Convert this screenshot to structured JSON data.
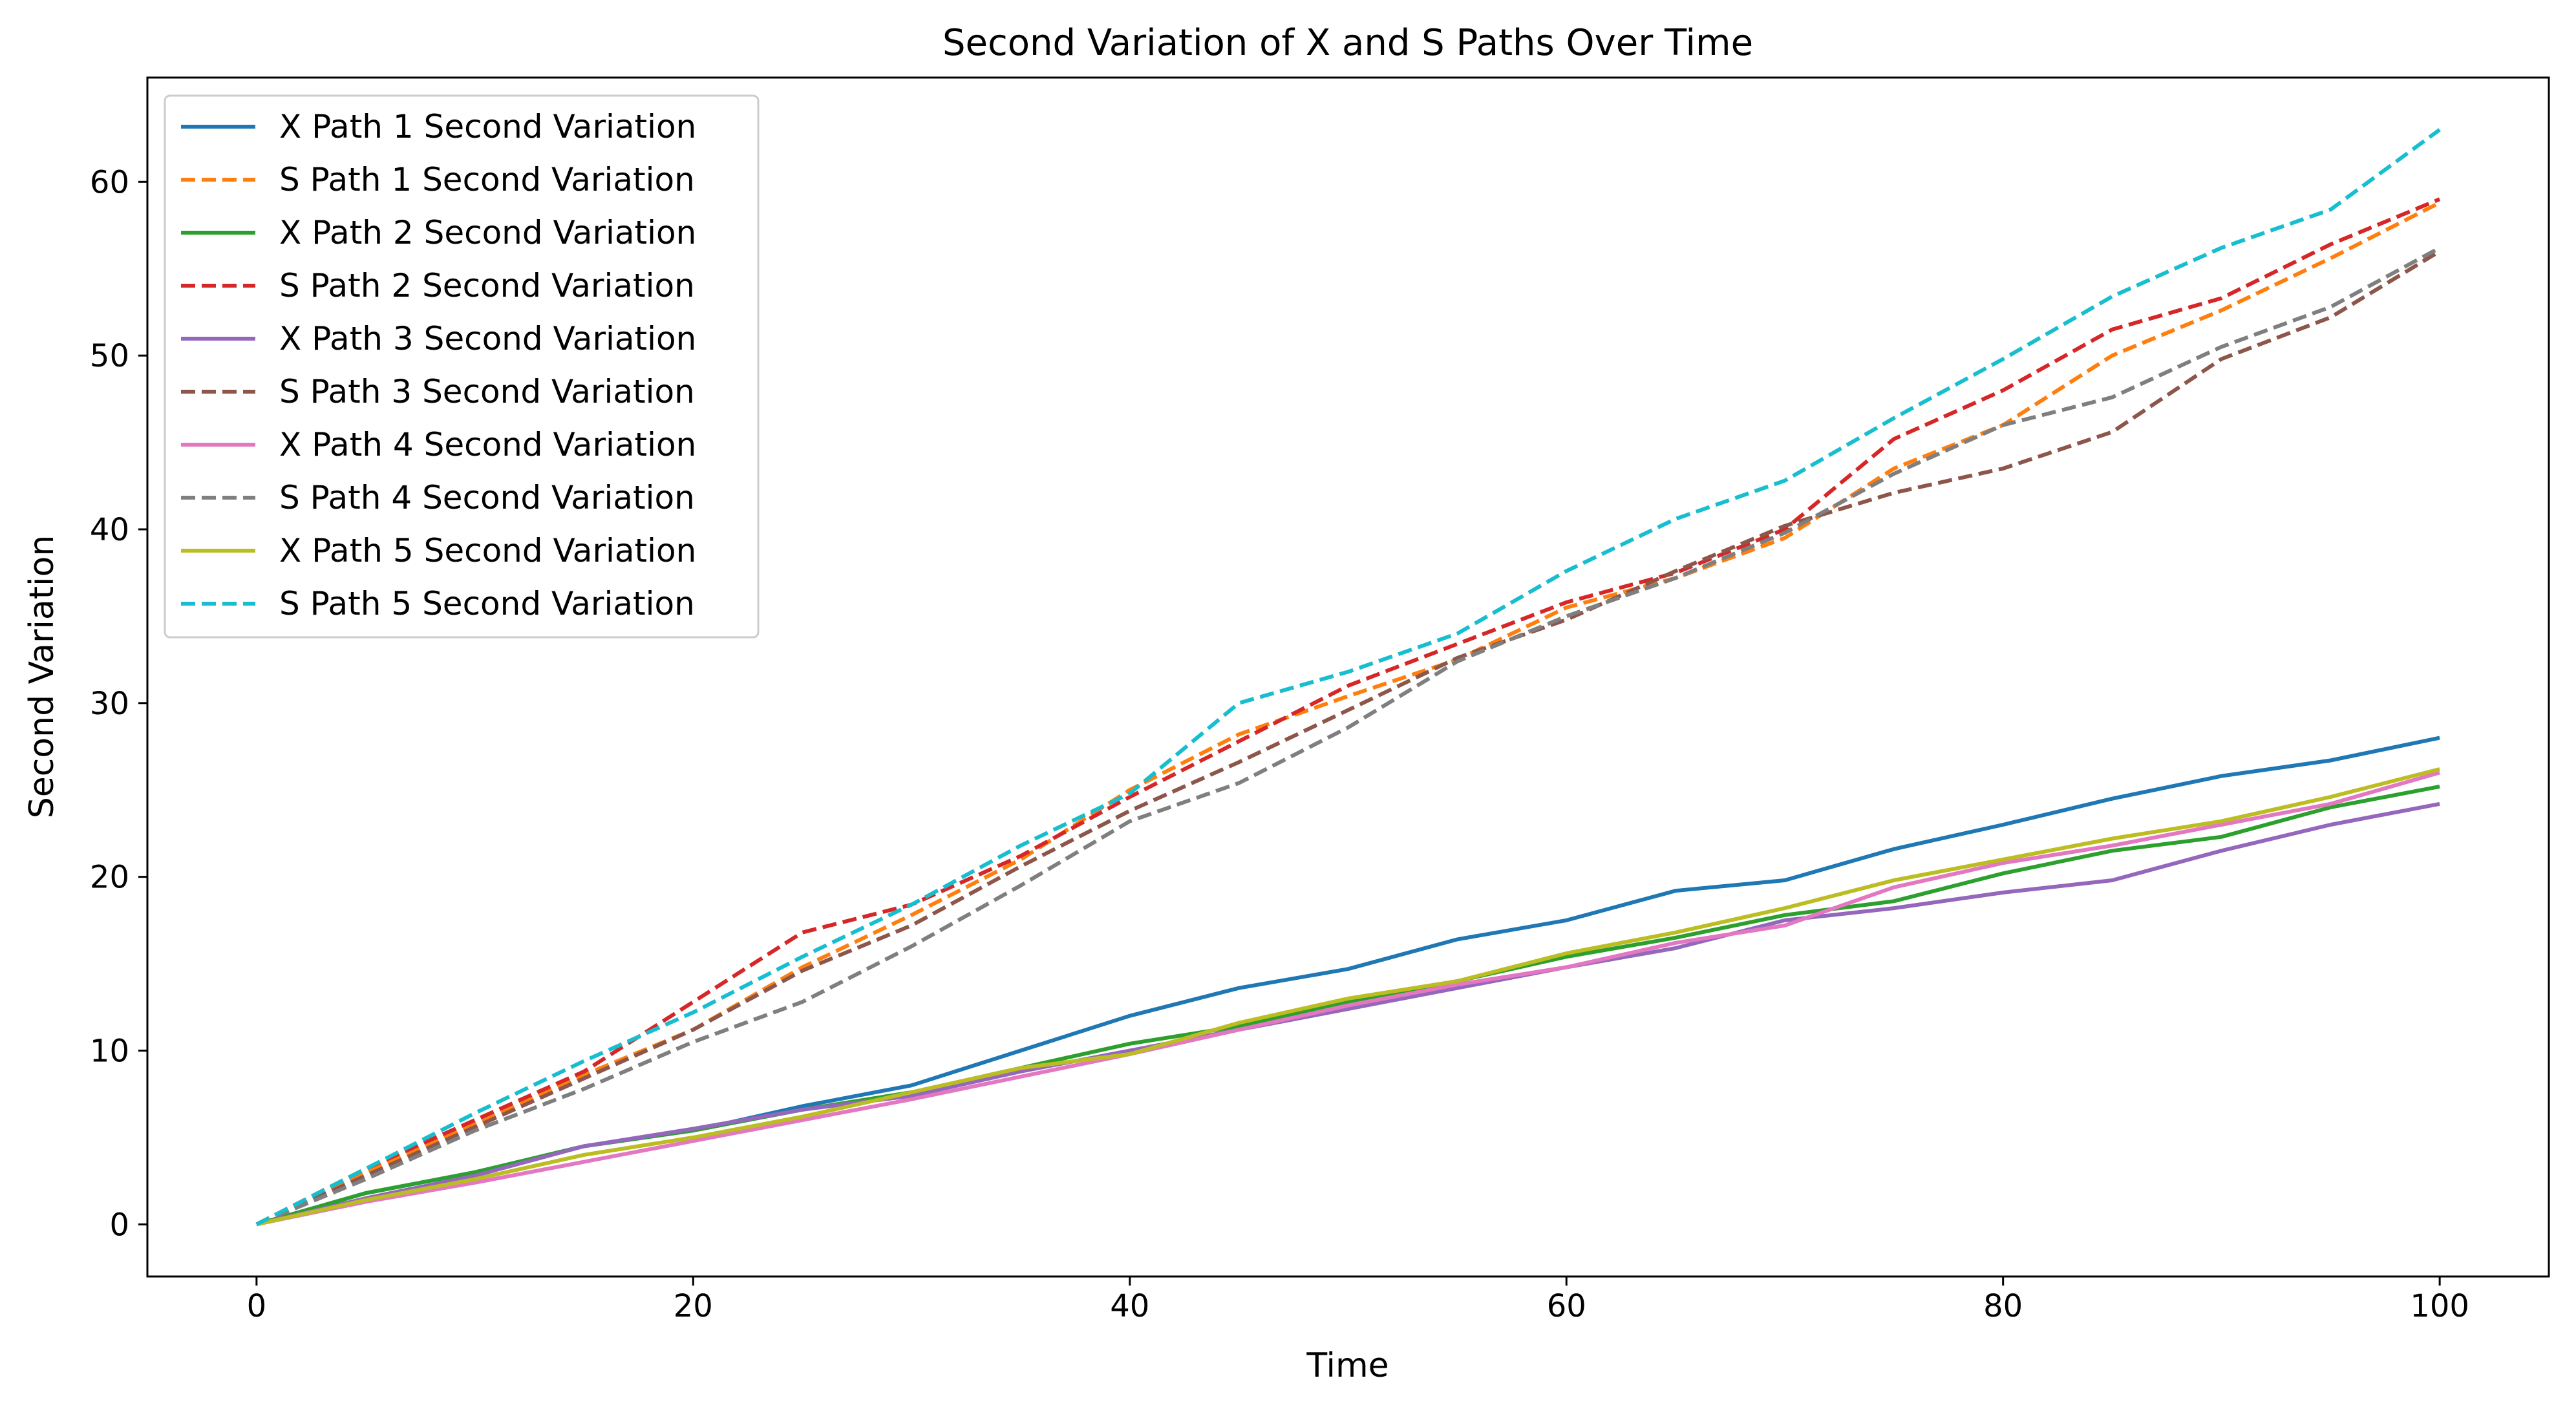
{
  "chart_data": {
    "type": "line",
    "title": "Second Variation of X and S Paths Over Time",
    "xlabel": "Time",
    "ylabel": "Second Variation",
    "xlim": [
      -5,
      105
    ],
    "ylim": [
      -3,
      66
    ],
    "xticks": [
      0,
      20,
      40,
      60,
      80,
      100
    ],
    "yticks": [
      0,
      10,
      20,
      30,
      40,
      50,
      60
    ],
    "grid": false,
    "legend_position": "upper-left",
    "series": [
      {
        "name": "X Path 1 Second Variation",
        "color": "#1f77b4",
        "style": "solid",
        "x": [
          0,
          5,
          10,
          15,
          20,
          25,
          30,
          35,
          40,
          45,
          50,
          55,
          60,
          65,
          70,
          75,
          80,
          85,
          90,
          95,
          100
        ],
        "y": [
          0,
          1.8,
          3.0,
          4.5,
          5.4,
          6.8,
          8.0,
          10.0,
          12.0,
          13.6,
          14.7,
          16.4,
          17.5,
          19.2,
          19.8,
          21.6,
          23.0,
          24.5,
          25.8,
          26.7,
          28.0
        ]
      },
      {
        "name": "S Path 1 Second Variation",
        "color": "#ff7f0e",
        "style": "dashed",
        "x": [
          0,
          5,
          10,
          15,
          20,
          25,
          30,
          35,
          40,
          45,
          50,
          55,
          60,
          65,
          70,
          75,
          80,
          85,
          90,
          95,
          100
        ],
        "y": [
          0,
          3.0,
          5.8,
          8.6,
          11.2,
          14.8,
          17.8,
          21.0,
          25.0,
          28.2,
          30.4,
          32.5,
          35.5,
          37.2,
          39.5,
          43.5,
          46.0,
          50.0,
          52.6,
          55.6,
          58.8
        ]
      },
      {
        "name": "X Path 2 Second Variation",
        "color": "#2ca02c",
        "style": "solid",
        "x": [
          0,
          5,
          10,
          15,
          20,
          25,
          30,
          35,
          40,
          45,
          50,
          55,
          60,
          65,
          70,
          75,
          80,
          85,
          90,
          95,
          100
        ],
        "y": [
          0,
          1.8,
          3.0,
          4.5,
          5.4,
          6.6,
          7.6,
          9.0,
          10.4,
          11.4,
          12.8,
          14.0,
          15.4,
          16.5,
          17.8,
          18.6,
          20.2,
          21.5,
          22.3,
          24.0,
          25.2
        ]
      },
      {
        "name": "S Path 2 Second Variation",
        "color": "#d62728",
        "style": "dashed",
        "x": [
          0,
          5,
          10,
          15,
          20,
          25,
          30,
          35,
          40,
          45,
          50,
          55,
          60,
          65,
          70,
          75,
          80,
          85,
          90,
          95,
          100
        ],
        "y": [
          0,
          3.2,
          6.0,
          8.8,
          12.8,
          16.8,
          18.4,
          21.2,
          24.6,
          27.8,
          31.0,
          33.4,
          35.8,
          37.5,
          40.0,
          45.2,
          48.0,
          51.5,
          53.3,
          56.4,
          59.0
        ]
      },
      {
        "name": "X Path 3 Second Variation",
        "color": "#9467bd",
        "style": "solid",
        "x": [
          0,
          5,
          10,
          15,
          20,
          25,
          30,
          35,
          40,
          45,
          50,
          55,
          60,
          65,
          70,
          75,
          80,
          85,
          90,
          95,
          100
        ],
        "y": [
          0,
          1.5,
          2.8,
          4.5,
          5.5,
          6.6,
          7.4,
          8.8,
          10.0,
          11.2,
          12.4,
          13.6,
          14.8,
          15.9,
          17.5,
          18.2,
          19.1,
          19.8,
          21.5,
          23.0,
          24.2
        ]
      },
      {
        "name": "S Path 3 Second Variation",
        "color": "#8c564b",
        "style": "dashed",
        "x": [
          0,
          5,
          10,
          15,
          20,
          25,
          30,
          35,
          40,
          45,
          50,
          55,
          60,
          65,
          70,
          75,
          80,
          85,
          90,
          95,
          100
        ],
        "y": [
          0,
          2.8,
          5.6,
          8.4,
          11.2,
          14.6,
          17.2,
          20.6,
          23.8,
          26.6,
          29.6,
          32.6,
          34.8,
          37.6,
          40.2,
          42.1,
          43.5,
          45.6,
          49.8,
          52.2,
          56.0
        ]
      },
      {
        "name": "X Path 4 Second Variation",
        "color": "#e377c2",
        "style": "solid",
        "x": [
          0,
          5,
          10,
          15,
          20,
          25,
          30,
          35,
          40,
          45,
          50,
          55,
          60,
          65,
          70,
          75,
          80,
          85,
          90,
          95,
          100
        ],
        "y": [
          0,
          1.3,
          2.4,
          3.6,
          4.8,
          6.0,
          7.2,
          8.5,
          9.8,
          11.2,
          12.6,
          13.8,
          14.8,
          16.2,
          17.2,
          19.4,
          20.8,
          21.8,
          23.0,
          24.2,
          26.0
        ]
      },
      {
        "name": "S Path 4 Second Variation",
        "color": "#7f7f7f",
        "style": "dashed",
        "x": [
          0,
          5,
          10,
          15,
          20,
          25,
          30,
          35,
          40,
          45,
          50,
          55,
          60,
          65,
          70,
          75,
          80,
          85,
          90,
          95,
          100
        ],
        "y": [
          0,
          2.6,
          5.4,
          7.8,
          10.5,
          12.8,
          16.0,
          19.5,
          23.2,
          25.4,
          28.6,
          32.4,
          35.0,
          37.2,
          39.8,
          43.2,
          46.0,
          47.6,
          50.5,
          52.8,
          56.2
        ]
      },
      {
        "name": "X Path 5 Second Variation",
        "color": "#bcbd22",
        "style": "solid",
        "x": [
          0,
          5,
          10,
          15,
          20,
          25,
          30,
          35,
          40,
          45,
          50,
          55,
          60,
          65,
          70,
          75,
          80,
          85,
          90,
          95,
          100
        ],
        "y": [
          0,
          1.4,
          2.6,
          4.0,
          5.0,
          6.2,
          7.6,
          9.0,
          9.8,
          11.6,
          13.0,
          14.0,
          15.6,
          16.8,
          18.2,
          19.8,
          21.0,
          22.2,
          23.2,
          24.6,
          26.2
        ]
      },
      {
        "name": "S Path 5 Second Variation",
        "color": "#17becf",
        "style": "dashed",
        "x": [
          0,
          5,
          10,
          15,
          20,
          25,
          30,
          35,
          40,
          45,
          50,
          55,
          60,
          65,
          70,
          75,
          80,
          85,
          90,
          95,
          100
        ],
        "y": [
          0,
          3.2,
          6.4,
          9.4,
          12.2,
          15.4,
          18.4,
          21.8,
          24.8,
          30.0,
          31.8,
          34.0,
          37.6,
          40.6,
          42.8,
          46.4,
          49.8,
          53.4,
          56.2,
          58.4,
          63.0
        ]
      }
    ]
  }
}
